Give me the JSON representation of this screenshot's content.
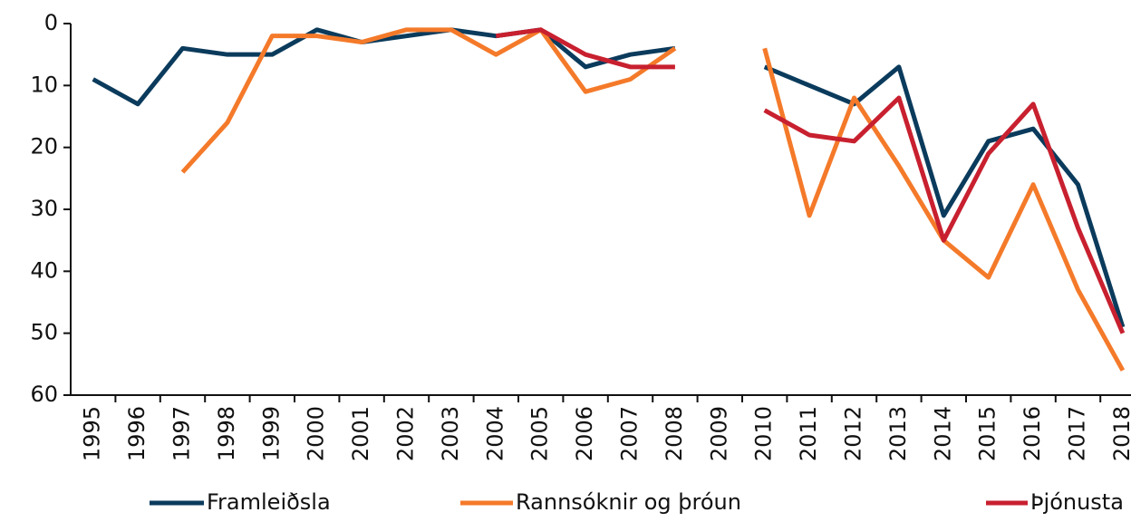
{
  "chart_data": {
    "type": "line",
    "categories": [
      "1995",
      "1996",
      "1997",
      "1998",
      "1999",
      "2000",
      "2001",
      "2002",
      "2003",
      "2004",
      "2005",
      "2006",
      "2007",
      "2008",
      "2009",
      "2010",
      "2011",
      "2012",
      "2013",
      "2014",
      "2015",
      "2016",
      "2017",
      "2018"
    ],
    "series": [
      {
        "name": "Framleiðsla",
        "color": "#0b3b5c",
        "values": [
          9,
          13,
          4,
          5,
          5,
          1,
          3,
          2,
          1,
          2,
          1,
          7,
          5,
          4,
          null,
          7,
          10,
          13,
          7,
          31,
          19,
          17,
          26,
          49
        ]
      },
      {
        "name": "Rannsóknir og þróun",
        "color": "#f47a2a",
        "values": [
          null,
          null,
          24,
          16,
          2,
          2,
          3,
          1,
          1,
          5,
          1,
          11,
          9,
          4,
          null,
          4,
          31,
          12,
          23,
          35,
          41,
          26,
          43,
          56
        ]
      },
      {
        "name": "Þjónusta",
        "color": "#c8202f",
        "values": [
          null,
          null,
          null,
          null,
          null,
          null,
          null,
          null,
          null,
          2,
          1,
          5,
          7,
          7,
          null,
          14,
          18,
          19,
          12,
          35,
          21,
          13,
          33,
          50
        ]
      }
    ],
    "ylim": [
      0,
      60
    ],
    "yticks": [
      0,
      10,
      20,
      30,
      40,
      50,
      60
    ],
    "y_inverted": true,
    "grid": false,
    "legend": "bottom"
  }
}
